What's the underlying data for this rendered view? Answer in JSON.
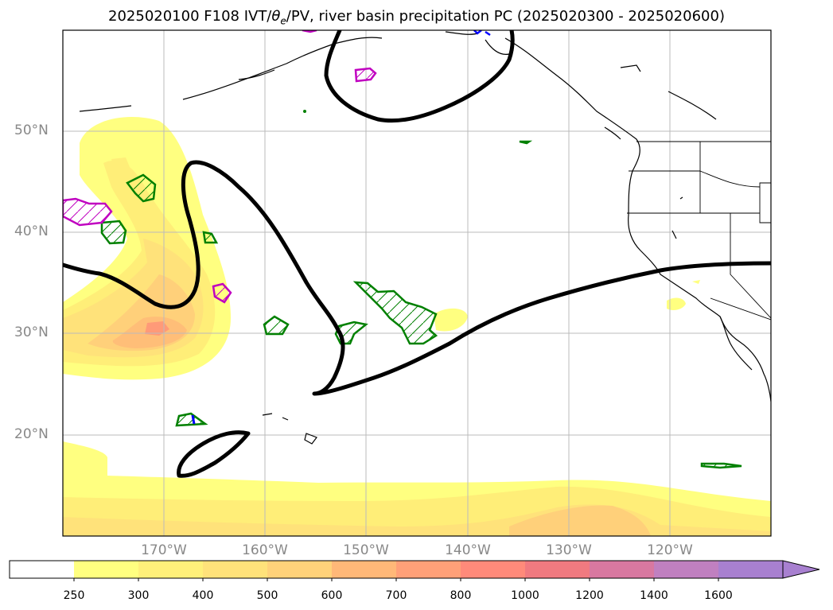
{
  "title_prefix": "2025020100 F108 IVT/",
  "title_theta": "θ",
  "title_theta_sub": "e",
  "title_suffix": "/PV, river basin precipitation PC (2025020300 - 2025020600)",
  "lat_labels": [
    "50°N",
    "40°N",
    "30°N",
    "20°N"
  ],
  "lon_labels": [
    "170°W",
    "160°W",
    "150°W",
    "140°W",
    "130°W",
    "120°W"
  ],
  "colorbar": {
    "ticks": [
      "250",
      "300",
      "400",
      "500",
      "600",
      "700",
      "800",
      "1000",
      "1200",
      "1400",
      "1600"
    ],
    "colors": [
      "#ffffff",
      "#ffff80",
      "#fff07a",
      "#ffe27a",
      "#ffd27a",
      "#ffb878",
      "#ffa078",
      "#ff8a7a",
      "#f07a80",
      "#d878a0",
      "#c080c0",
      "#a880d0"
    ]
  },
  "colors": {
    "ivt_light": "#ffff80",
    "ivt_mid": "#ffea78",
    "ivt_orange": "#ffd07a",
    "ivt_dark": "#ffb070",
    "ivt_red": "#ff8070",
    "pv_contour": "#000000",
    "precip_green": "#008000",
    "theta_magenta": "#c000c0",
    "blue": "#0000ff"
  }
}
